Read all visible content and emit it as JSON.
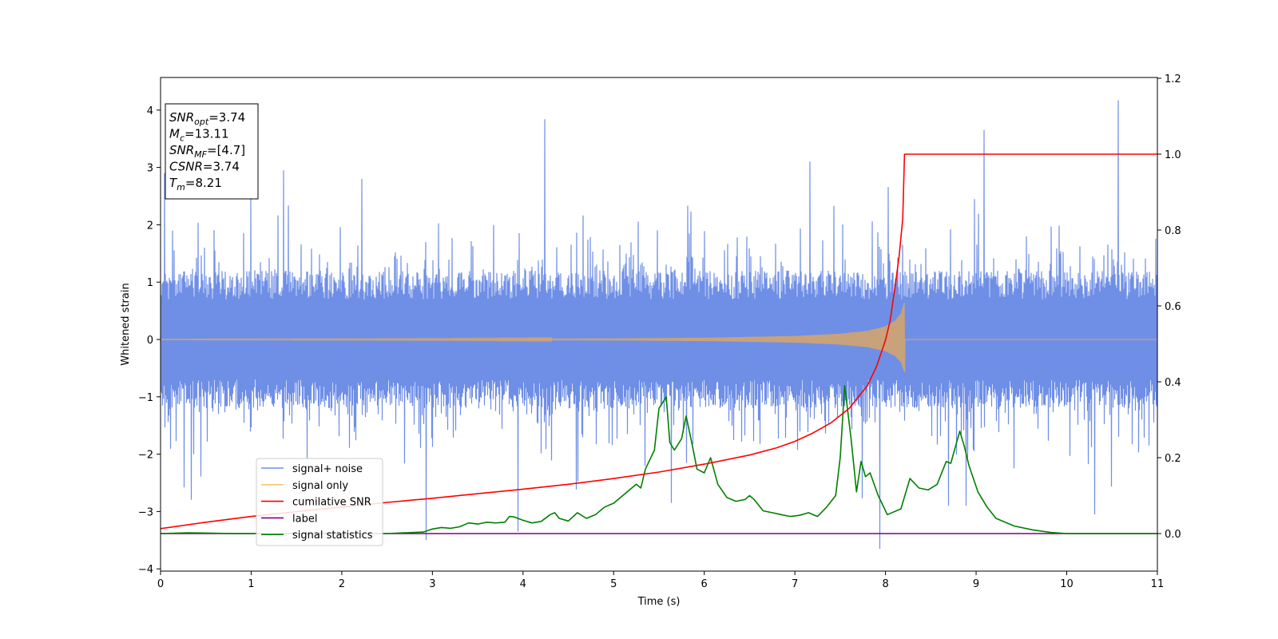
{
  "chart_data": {
    "type": "line",
    "xlabel": "Time (s)",
    "ylabel": "Whitened strain",
    "xlim": [
      0,
      11
    ],
    "ylim": [
      -4.1,
      4.55
    ],
    "y2lim": [
      -0.1,
      1.2
    ],
    "xticks": [
      "0",
      "1",
      "2",
      "3",
      "4",
      "5",
      "6",
      "7",
      "8",
      "9",
      "10",
      "11"
    ],
    "yticks": [
      "−4",
      "−3",
      "−2",
      "−1",
      "0",
      "1",
      "2",
      "3",
      "4"
    ],
    "y2ticks": [
      "0.0",
      "0.2",
      "0.4",
      "0.6",
      "0.8",
      "1.0",
      "1.2"
    ],
    "legend_position": "lower-left",
    "legend": [
      {
        "label": "signal+ noise",
        "color": "#6f8fe6"
      },
      {
        "label": "signal only",
        "color": "#f5c57a"
      },
      {
        "label": "cumilative SNR",
        "color": "#ff0000"
      },
      {
        "label": "label",
        "color": "#800080"
      },
      {
        "label": "signal statistics",
        "color": "#008000"
      }
    ],
    "annotation_lines": [
      {
        "name": "SNR",
        "sub": "opt",
        "value": "=3.74"
      },
      {
        "name": "M",
        "sub": "c",
        "value": "=13.11"
      },
      {
        "name": "SNR",
        "sub": "MF",
        "value": "=[4.7]"
      },
      {
        "name": "CSNR",
        "sub": "",
        "value": "=3.74"
      },
      {
        "name": "T",
        "sub": "m",
        "value": "=8.21"
      }
    ],
    "series": [
      {
        "name": "signal+ noise",
        "axis": "left",
        "color": "#6f8fe6",
        "description": "white noise, std ~0.8, spikes up to 4.2 at t=10.57 and down to -3.65 at t=7.93",
        "peaks": [
          [
            1.0,
            2.6
          ],
          [
            1.36,
            2.95
          ],
          [
            2.22,
            2.8
          ],
          [
            4.24,
            3.84
          ],
          [
            7.17,
            3.1
          ],
          [
            9.09,
            3.65
          ],
          [
            10.57,
            4.17
          ],
          [
            2.93,
            -3.5
          ],
          [
            3.94,
            -3.35
          ],
          [
            5.63,
            -2.85
          ],
          [
            7.93,
            -3.65
          ],
          [
            10.3,
            -3.05
          ],
          [
            0.04,
            2.9
          ]
        ]
      },
      {
        "name": "signal only",
        "axis": "left",
        "color": "#c8a27a",
        "description": "chirp with growing amplitude, merging at t=8.21",
        "t_merge": 8.21,
        "envelope": [
          [
            0,
            0.003
          ],
          [
            3,
            0.008
          ],
          [
            5,
            0.018
          ],
          [
            6,
            0.03
          ],
          [
            7,
            0.06
          ],
          [
            7.5,
            0.1
          ],
          [
            7.8,
            0.15
          ],
          [
            8.0,
            0.23
          ],
          [
            8.1,
            0.32
          ],
          [
            8.17,
            0.45
          ],
          [
            8.2,
            0.62
          ],
          [
            8.21,
            0.65
          ]
        ]
      },
      {
        "name": "cumilative SNR",
        "axis": "right",
        "color": "#ff0000",
        "x": [
          0,
          0.5,
          1,
          1.5,
          2,
          2.5,
          3,
          3.5,
          4,
          4.5,
          5,
          5.5,
          6,
          6.5,
          6.8,
          7,
          7.2,
          7.4,
          7.6,
          7.8,
          7.9,
          8.0,
          8.05,
          8.1,
          8.15,
          8.19,
          8.21,
          9,
          10,
          11
        ],
        "y": [
          0.013,
          0.03,
          0.045,
          0.058,
          0.07,
          0.082,
          0.093,
          0.105,
          0.117,
          0.13,
          0.145,
          0.162,
          0.183,
          0.207,
          0.226,
          0.243,
          0.265,
          0.292,
          0.33,
          0.39,
          0.44,
          0.51,
          0.56,
          0.64,
          0.73,
          0.83,
          1.0,
          1.0,
          1.0,
          1.0
        ]
      },
      {
        "name": "label",
        "axis": "right",
        "color": "#800080",
        "x": [
          0,
          11
        ],
        "y": [
          0,
          0
        ]
      },
      {
        "name": "signal statistics",
        "axis": "right",
        "color": "#008000",
        "x": [
          0,
          0.3,
          0.8,
          1.5,
          2.5,
          2.9,
          3.0,
          3.1,
          3.2,
          3.3,
          3.4,
          3.5,
          3.6,
          3.7,
          3.8,
          3.85,
          3.9,
          4.0,
          4.1,
          4.2,
          4.3,
          4.35,
          4.4,
          4.5,
          4.6,
          4.7,
          4.8,
          4.9,
          5.0,
          5.1,
          5.2,
          5.25,
          5.3,
          5.35,
          5.45,
          5.5,
          5.58,
          5.62,
          5.67,
          5.75,
          5.8,
          5.87,
          5.92,
          6.0,
          6.07,
          6.15,
          6.25,
          6.35,
          6.45,
          6.5,
          6.55,
          6.65,
          6.75,
          6.85,
          6.95,
          7.05,
          7.15,
          7.25,
          7.35,
          7.45,
          7.5,
          7.55,
          7.62,
          7.68,
          7.73,
          7.78,
          7.83,
          7.92,
          8.02,
          8.17,
          8.27,
          8.37,
          8.47,
          8.57,
          8.67,
          8.72,
          8.82,
          8.87,
          8.92,
          9.02,
          9.12,
          9.22,
          9.42,
          9.62,
          9.82,
          10.0,
          10.5,
          11.0
        ],
        "y": [
          0.0,
          0.002,
          0.0,
          0.0,
          0.0,
          0.004,
          0.012,
          0.016,
          0.014,
          0.018,
          0.028,
          0.025,
          0.03,
          0.028,
          0.03,
          0.045,
          0.044,
          0.035,
          0.028,
          0.032,
          0.05,
          0.055,
          0.04,
          0.033,
          0.055,
          0.04,
          0.05,
          0.07,
          0.08,
          0.1,
          0.12,
          0.13,
          0.12,
          0.17,
          0.22,
          0.33,
          0.36,
          0.24,
          0.22,
          0.25,
          0.31,
          0.23,
          0.17,
          0.16,
          0.2,
          0.13,
          0.095,
          0.085,
          0.09,
          0.1,
          0.09,
          0.06,
          0.055,
          0.05,
          0.045,
          0.048,
          0.055,
          0.045,
          0.07,
          0.1,
          0.2,
          0.39,
          0.25,
          0.11,
          0.19,
          0.15,
          0.16,
          0.1,
          0.05,
          0.065,
          0.145,
          0.12,
          0.115,
          0.13,
          0.19,
          0.185,
          0.27,
          0.23,
          0.18,
          0.11,
          0.07,
          0.04,
          0.02,
          0.01,
          0.003,
          0.0,
          0.0,
          0.0
        ]
      }
    ]
  }
}
